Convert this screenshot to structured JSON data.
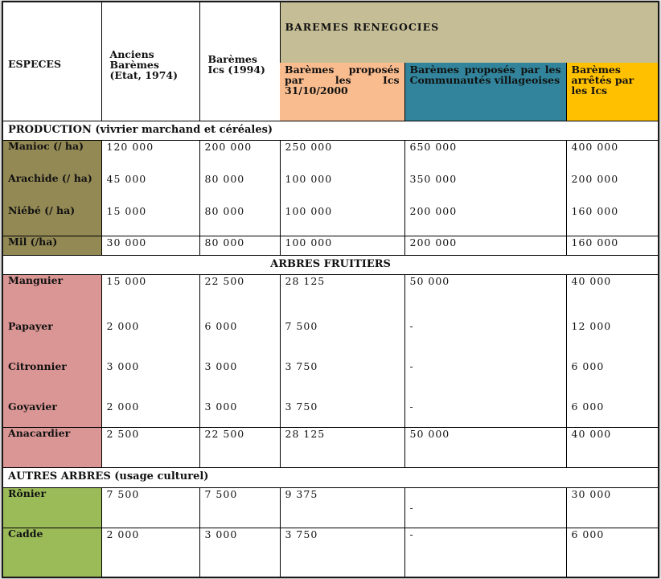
{
  "header": {
    "especes": "ESPECES",
    "anciens": "Anciens Barèmes (Etat, 1974)",
    "icscol": "Barèmes Ics (1994)",
    "renegocies": "BAREMES RENEGOCIES",
    "propose_ics": "Barèmes proposés par les Ics 31/10/2000",
    "propose_communautes": "Barèmes proposés par les Communautés villageoises",
    "arretes": "Barèmes arrêtés par les Ics"
  },
  "sections": {
    "production": "PRODUCTION (vivrier marchand et céréales)",
    "arbres_fruitiers": "ARBRES FRUITIERS",
    "autres_arbres": "AUTRES ARBRES (usage culturel)"
  },
  "production_rows": [
    {
      "espece": "Manioc (/ ha)",
      "anciens": "120 000",
      "ics": "200 000",
      "propose_ics": "250 000",
      "propose_comm": "650 000",
      "arretes": "400 000"
    },
    {
      "espece": "Arachide (/ ha)",
      "anciens": "45 000",
      "ics": "80 000",
      "propose_ics": "100 000",
      "propose_comm": "350 000",
      "arretes": "200 000"
    },
    {
      "espece": "Niébé (/ ha)",
      "anciens": "15 000",
      "ics": "80 000",
      "propose_ics": "100 000",
      "propose_comm": "200 000",
      "arretes": "160 000"
    },
    {
      "espece": "Mil (/ha)",
      "anciens": "30 000",
      "ics": "80 000",
      "propose_ics": "100 000",
      "propose_comm": "200 000",
      "arretes": "160 000"
    }
  ],
  "fruitiers_rows": [
    {
      "espece": "Manguier",
      "anciens": "15 000",
      "ics": "22 500",
      "propose_ics": "28 125",
      "propose_comm": "50 000",
      "arretes": "40 000"
    },
    {
      "espece": "Papayer",
      "anciens": "2 000",
      "ics": "6 000",
      "propose_ics": "7 500",
      "propose_comm": "-",
      "arretes": "12 000"
    },
    {
      "espece": "Citronnier",
      "anciens": "3 000",
      "ics": "3 000",
      "propose_ics": "3 750",
      "propose_comm": "-",
      "arretes": "6 000"
    },
    {
      "espece": "Goyavier",
      "anciens": "2 000",
      "ics": "3 000",
      "propose_ics": "3 750",
      "propose_comm": "-",
      "arretes": "6 000"
    },
    {
      "espece": "Anacardier",
      "anciens": "2 500",
      "ics": "22 500",
      "propose_ics": "28 125",
      "propose_comm": "50 000",
      "arretes": "40 000"
    }
  ],
  "autres_rows": [
    {
      "espece": "Rônier",
      "anciens": "7 500",
      "ics": "7 500",
      "propose_ics": "9 375",
      "propose_comm": "-",
      "arretes": "30 000"
    },
    {
      "espece": "Cadde",
      "anciens": "2 000",
      "ics": "3 000",
      "propose_ics": "3 750",
      "propose_comm": "-",
      "arretes": "6 000"
    }
  ],
  "colors": {
    "renegocies_bg": "#c5bd96",
    "propose_ics_bg": "#f9bc8f",
    "propose_comm_bg": "#31849b",
    "arretes_bg": "#ffc000",
    "production_species_bg": "#938954",
    "fruitiers_species_bg": "#da9694",
    "autres_species_bg": "#9bbb59"
  }
}
